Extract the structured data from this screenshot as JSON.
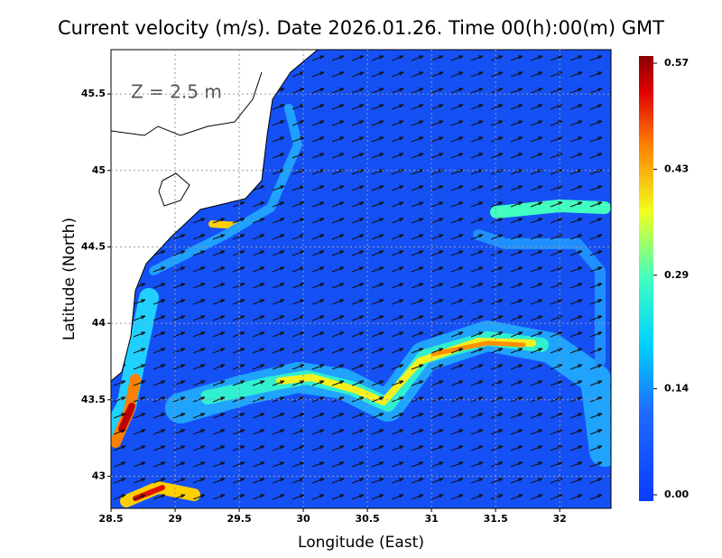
{
  "title": "Current velocity (m/s). Date 2026.01.26. Time 00(h):00(m) GMT",
  "annotation": "Z = 2.5 m",
  "x_axis": {
    "label": "Longitude (East)",
    "lim": [
      28.5,
      32.4
    ],
    "ticks": [
      28.5,
      29,
      29.5,
      30,
      30.5,
      31,
      31.5,
      32
    ]
  },
  "y_axis": {
    "label": "Latitude (North)",
    "lim": [
      42.79,
      45.79
    ],
    "ticks": [
      43,
      43.5,
      44,
      44.5,
      45,
      45.5
    ]
  },
  "colorbar": {
    "lim": [
      0,
      0.57
    ],
    "ticks": [
      {
        "value": 0,
        "label": "0.00"
      },
      0.14,
      0.29,
      0.43,
      0.57
    ]
  }
}
